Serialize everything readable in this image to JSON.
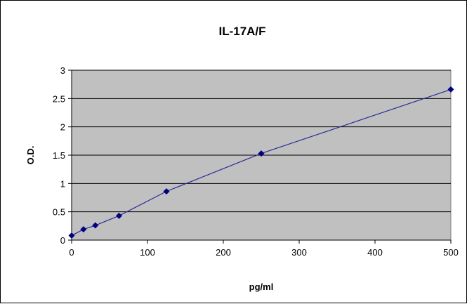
{
  "chart_data": {
    "type": "scatter",
    "title": "IL-17A/F",
    "xlabel": "pg/ml",
    "ylabel": "O.D.",
    "xlim": [
      0,
      500
    ],
    "ylim": [
      0,
      3
    ],
    "x_ticks": [
      0,
      100,
      200,
      300,
      400,
      500
    ],
    "y_ticks": [
      0,
      0.5,
      1,
      1.5,
      2,
      2.5,
      3
    ],
    "x_tick_labels": [
      "0",
      "100",
      "200",
      "300",
      "400",
      "500"
    ],
    "y_tick_labels": [
      "0",
      "0.5",
      "1",
      "1.5",
      "2",
      "2.5",
      "3"
    ],
    "grid": "horizontal",
    "series": [
      {
        "x": [
          0,
          15.6,
          31.25,
          62.5,
          125,
          250,
          500
        ],
        "y": [
          0.08,
          0.19,
          0.26,
          0.43,
          0.86,
          1.53,
          2.66
        ]
      }
    ],
    "colors": {
      "plot_background": "#c0c0c0",
      "gridline": "#000000",
      "series_line": "#2a2a9a",
      "marker": "#000080"
    }
  }
}
